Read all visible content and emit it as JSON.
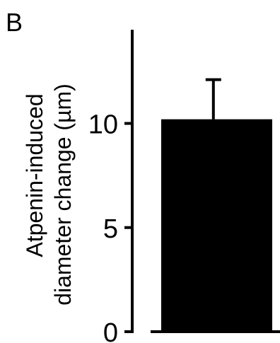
{
  "panel_label": "B",
  "chart_data": {
    "type": "bar",
    "ylabel": [
      "Atpenin-induced",
      "diameter change (µm)"
    ],
    "categories": [
      ""
    ],
    "values": [
      10.2
    ],
    "error_bars": [
      1.9
    ],
    "ylim": [
      0,
      14.5
    ],
    "yticks": [
      0,
      5,
      10
    ],
    "ytick_labels": [
      "0",
      "5",
      "10"
    ],
    "grid": false,
    "legend": "none",
    "colors": {
      "bar": "#000000",
      "axis": "#000000",
      "background": "#ffffff"
    }
  }
}
